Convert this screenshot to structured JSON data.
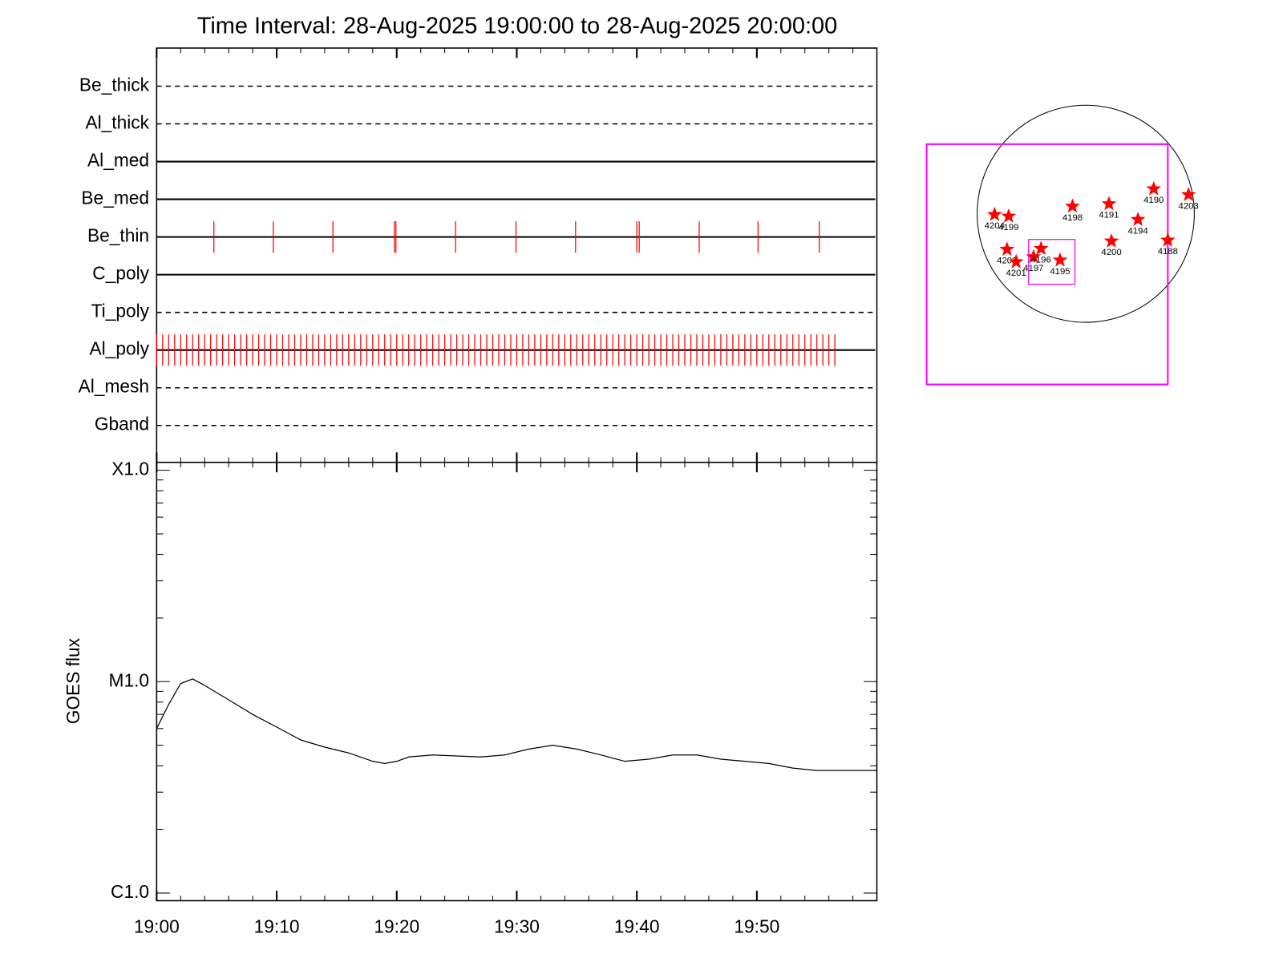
{
  "chart_data": [
    {
      "type": "timeline",
      "title": "Time Interval: 28-Aug-2025 19:00:00 to 28-Aug-2025 20:00:00",
      "xlim": [
        "19:00",
        "20:00"
      ],
      "color": "#ff0000",
      "rows": [
        {
          "name": "Be_thick",
          "style": "dashed",
          "events": []
        },
        {
          "name": "Al_thick",
          "style": "dashed",
          "events": []
        },
        {
          "name": "Al_med",
          "style": "solid",
          "events": []
        },
        {
          "name": "Be_med",
          "style": "solid",
          "events": []
        },
        {
          "name": "Be_thin",
          "style": "solid",
          "events": [
            "19:04:46",
            "19:09:43",
            "19:14:41",
            "19:19:48",
            "19:19:56",
            "19:24:54",
            "19:29:56",
            "19:34:54",
            "19:40:00",
            "19:40:12",
            "19:45:12",
            "19:50:06",
            "19:55:12"
          ]
        },
        {
          "name": "C_poly",
          "style": "solid",
          "events": []
        },
        {
          "name": "Ti_poly",
          "style": "dashed",
          "events": []
        },
        {
          "name": "Al_poly",
          "style": "solid",
          "events": [
            "19:00:00",
            "19:00:30",
            "19:01:00",
            "19:01:30",
            "19:02:00",
            "19:02:30",
            "19:03:00",
            "19:03:30",
            "19:04:00",
            "19:04:30",
            "19:05:00",
            "19:05:30",
            "19:06:00",
            "19:06:30",
            "19:07:00",
            "19:07:30",
            "19:08:00",
            "19:08:30",
            "19:09:00",
            "19:09:30",
            "19:10:00",
            "19:10:30",
            "19:11:00",
            "19:11:30",
            "19:12:00",
            "19:12:30",
            "19:13:00",
            "19:13:30",
            "19:14:00",
            "19:14:30",
            "19:15:00",
            "19:15:30",
            "19:16:00",
            "19:16:30",
            "19:17:00",
            "19:17:30",
            "19:18:00",
            "19:18:30",
            "19:19:00",
            "19:19:30",
            "19:20:00",
            "19:20:30",
            "19:21:00",
            "19:21:30",
            "19:22:00",
            "19:22:30",
            "19:23:00",
            "19:23:30",
            "19:24:00",
            "19:24:30",
            "19:25:00",
            "19:25:30",
            "19:26:00",
            "19:26:30",
            "19:27:00",
            "19:27:30",
            "19:28:00",
            "19:28:30",
            "19:29:00",
            "19:29:30",
            "19:30:00",
            "19:30:30",
            "19:31:00",
            "19:31:30",
            "19:32:00",
            "19:32:30",
            "19:33:00",
            "19:33:30",
            "19:34:00",
            "19:34:30",
            "19:35:00",
            "19:35:30",
            "19:36:00",
            "19:36:30",
            "19:37:00",
            "19:37:30",
            "19:38:00",
            "19:38:30",
            "19:39:00",
            "19:39:30",
            "19:40:00",
            "19:40:30",
            "19:41:00",
            "19:41:30",
            "19:42:00",
            "19:42:30",
            "19:43:00",
            "19:43:30",
            "19:44:00",
            "19:44:30",
            "19:45:00",
            "19:45:30",
            "19:46:00",
            "19:46:30",
            "19:47:00",
            "19:47:30",
            "19:48:00",
            "19:48:30",
            "19:49:00",
            "19:49:30",
            "19:50:00",
            "19:50:30",
            "19:51:00",
            "19:51:30",
            "19:52:00",
            "19:52:30",
            "19:53:00",
            "19:53:30",
            "19:54:00",
            "19:54:30",
            "19:55:00",
            "19:55:30",
            "19:56:00",
            "19:56:30"
          ]
        },
        {
          "name": "Al_mesh",
          "style": "dashed",
          "events": []
        },
        {
          "name": "Gband",
          "style": "dashed",
          "events": []
        }
      ]
    },
    {
      "type": "line",
      "ylabel": "GOES flux",
      "log_y": true,
      "color": "#000000",
      "xlim": [
        "19:00",
        "20:00"
      ],
      "xticks": [
        "19:00",
        "19:10",
        "19:20",
        "19:30",
        "19:40",
        "19:50"
      ],
      "xticks_minor": [
        "19:02",
        "19:04",
        "19:06",
        "19:08",
        "19:12",
        "19:14",
        "19:16",
        "19:18",
        "19:22",
        "19:24",
        "19:26",
        "19:28",
        "19:32",
        "19:34",
        "19:36",
        "19:38",
        "19:42",
        "19:44",
        "19:46",
        "19:48",
        "19:52",
        "19:54",
        "19:56",
        "19:58"
      ],
      "ylim": [
        9.2e-07,
        0.000109
      ],
      "yticks": [
        {
          "value": 1e-06,
          "label": "C1.0"
        },
        {
          "value": 1e-05,
          "label": "M1.0"
        },
        {
          "value": 0.0001,
          "label": "X1.0"
        }
      ],
      "yticks_minor": [
        2e-06,
        3e-06,
        4e-06,
        5e-06,
        6e-06,
        7e-06,
        8e-06,
        9e-06,
        2e-05,
        3e-05,
        4e-05,
        5e-05,
        6e-05,
        7e-05,
        8e-05,
        9e-05
      ],
      "x": [
        "19:00",
        "19:01",
        "19:02",
        "19:03",
        "19:04",
        "19:06",
        "19:08",
        "19:10",
        "19:12",
        "19:14",
        "19:16",
        "19:18",
        "19:19",
        "19:20",
        "19:21",
        "19:23",
        "19:27",
        "19:29",
        "19:31",
        "19:33",
        "19:35",
        "19:37",
        "19:39",
        "19:41",
        "19:43",
        "19:45",
        "19:47",
        "19:49",
        "19:51",
        "19:53",
        "19:55",
        "19:57",
        "20:00"
      ],
      "values": [
        6e-06,
        7.8e-06,
        9.8e-06,
        1.03e-05,
        9.6e-06,
        8.2e-06,
        7e-06,
        6.1e-06,
        5.3e-06,
        4.9e-06,
        4.6e-06,
        4.2e-06,
        4.1e-06,
        4.2e-06,
        4.4e-06,
        4.5e-06,
        4.4e-06,
        4.5e-06,
        4.8e-06,
        5e-06,
        4.8e-06,
        4.5e-06,
        4.2e-06,
        4.3e-06,
        4.5e-06,
        4.5e-06,
        4.3e-06,
        4.2e-06,
        4.1e-06,
        3.9e-06,
        3.8e-06,
        3.8e-06,
        3.8e-06
      ]
    }
  ],
  "disk": {
    "marker_color": "#ff0000",
    "box_color": "#ff00ff",
    "regions": [
      "4190",
      "4203",
      "4198",
      "4191",
      "4194",
      "4204",
      "4199",
      "4200",
      "4188",
      "4202",
      "4201",
      "4197",
      "4196",
      "4195"
    ]
  }
}
